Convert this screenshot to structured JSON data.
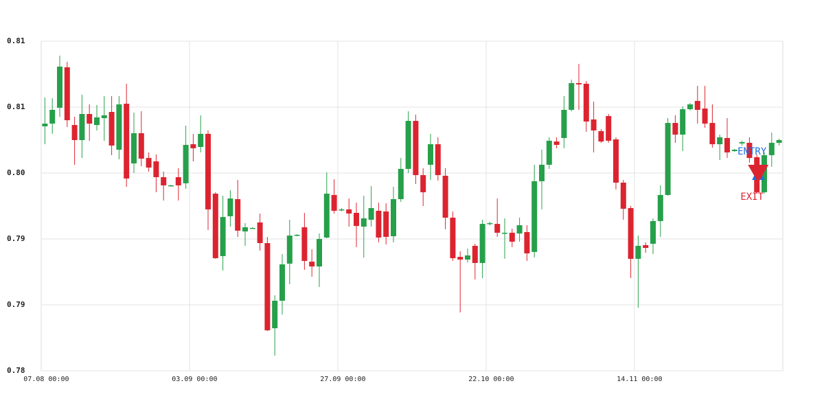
{
  "chart_data": {
    "type": "candlestick",
    "categories": [
      "07.08 00:00",
      null,
      null,
      null,
      null,
      null,
      null,
      null,
      null,
      null,
      null,
      null,
      null,
      null,
      null,
      null,
      null,
      null,
      null,
      null,
      "03.09 00:00",
      null,
      null,
      null,
      null,
      null,
      null,
      null,
      null,
      null,
      null,
      null,
      null,
      null,
      null,
      null,
      null,
      null,
      null,
      null,
      "27.09 00:00",
      null,
      null,
      null,
      null,
      null,
      null,
      null,
      null,
      null,
      null,
      null,
      null,
      null,
      null,
      null,
      null,
      null,
      null,
      null,
      "22.10 00:00",
      null,
      null,
      null,
      null,
      null,
      null,
      null,
      null,
      null,
      null,
      null,
      null,
      null,
      null,
      null,
      null,
      null,
      null,
      null,
      "14.11 00:00",
      null,
      null,
      null,
      null,
      null,
      null,
      null,
      null,
      null,
      null,
      null,
      null,
      null,
      null,
      null,
      null,
      null,
      null,
      null
    ],
    "open": [
      0.80596,
      0.80625,
      0.80793,
      0.81223,
      0.8061,
      0.8045,
      0.80727,
      0.8061,
      0.80683,
      0.80749,
      0.80348,
      0.80836,
      0.80202,
      0.80523,
      0.8026,
      0.80224,
      0.80056,
      0.79969,
      0.80056,
      0.79991,
      0.80406,
      0.80377,
      0.80516,
      0.79881,
      0.79218,
      0.79641,
      0.79823,
      0.7948,
      0.79517,
      0.79575,
      0.79356,
      0.78452,
      0.78744,
      0.79138,
      0.79436,
      0.79524,
      0.79159,
      0.79108,
      0.79415,
      0.79867,
      0.79706,
      0.79714,
      0.79677,
      0.79531,
      0.79604,
      0.79699,
      0.79692,
      0.79429,
      0.79823,
      0.80144,
      0.80654,
      0.80078,
      0.80188,
      0.80406,
      0.80071,
      0.79626,
      0.7921,
      0.79181,
      0.79327,
      0.79145,
      0.7956,
      0.7956,
      0.79458,
      0.79466,
      0.79458,
      0.79473,
      0.79262,
      0.80013,
      0.80188,
      0.80435,
      0.80472,
      0.80771,
      0.81055,
      0.81048,
      0.80669,
      0.80545,
      0.80705,
      0.80457,
      0.79998,
      0.79728,
      0.79189,
      0.79334,
      0.79349,
      0.7959,
      0.79867,
      0.80632,
      0.80508,
      0.80778,
      0.80866,
      0.80785,
      0.80632,
      0.80406,
      0.80472,
      0.80333,
      0.80414,
      0.80421,
      0.80268,
      0.79896,
      0.8029,
      0.80421
    ],
    "high": [
      0.80902,
      0.80895,
      0.81347,
      0.81281,
      0.80698,
      0.80931,
      0.80829,
      0.80822,
      0.80917,
      0.80917,
      0.80917,
      0.81048,
      0.80742,
      0.80756,
      0.80319,
      0.80297,
      0.80115,
      0.79976,
      0.80151,
      0.80603,
      0.80516,
      0.80713,
      0.80552,
      0.79896,
      0.79859,
      0.79918,
      0.80027,
      0.79568,
      0.79524,
      0.7967,
      0.79422,
      0.78802,
      0.7924,
      0.79604,
      0.79451,
      0.79677,
      0.79291,
      0.79458,
      0.80107,
      0.80034,
      0.79728,
      0.7983,
      0.79786,
      0.79859,
      0.79962,
      0.79786,
      0.79779,
      0.79954,
      0.8026,
      0.80756,
      0.8072,
      0.80151,
      0.80516,
      0.80479,
      0.80151,
      0.79692,
      0.79269,
      0.79298,
      0.79349,
      0.79604,
      0.79582,
      0.7983,
      0.79619,
      0.79509,
      0.79626,
      0.79546,
      0.80188,
      0.80348,
      0.80479,
      0.80479,
      0.80917,
      0.81092,
      0.81259,
      0.81077,
      0.80858,
      0.80567,
      0.80727,
      0.80479,
      0.80027,
      0.7975,
      0.79436,
      0.79364,
      0.79619,
      0.79969,
      0.80683,
      0.80713,
      0.80807,
      0.80844,
      0.81026,
      0.81026,
      0.80829,
      0.80508,
      0.80683,
      0.80355,
      0.80443,
      0.80479,
      0.80297,
      0.80319,
      0.8053,
      0.80465
    ],
    "low": [
      0.80406,
      0.80516,
      0.80698,
      0.80589,
      0.80188,
      0.8026,
      0.80443,
      0.80552,
      0.80443,
      0.8029,
      0.80246,
      0.79954,
      0.801,
      0.80173,
      0.80115,
      0.79896,
      0.79808,
      0.79962,
      0.79808,
      0.79932,
      0.80224,
      0.80319,
      0.79495,
      0.79189,
      0.79065,
      0.79531,
      0.79422,
      0.79327,
      0.79509,
      0.79276,
      0.78423,
      0.7816,
      0.78598,
      0.78919,
      0.79429,
      0.79072,
      0.78999,
      0.7889,
      0.79407,
      0.7967,
      0.79692,
      0.79531,
      0.79313,
      0.79203,
      0.79531,
      0.79364,
      0.79342,
      0.79364,
      0.79794,
      0.801,
      0.79983,
      0.7975,
      0.80027,
      0.8002,
      0.79502,
      0.79167,
      0.7862,
      0.79152,
      0.7897,
      0.78984,
      0.79546,
      0.79422,
      0.79189,
      0.79313,
      0.79371,
      0.79167,
      0.79203,
      0.79714,
      0.80144,
      0.80363,
      0.80363,
      0.80756,
      0.80771,
      0.80538,
      0.80319,
      0.80421,
      0.80421,
      0.79925,
      0.79604,
      0.78984,
      0.78671,
      0.79254,
      0.7924,
      0.79422,
      0.79859,
      0.80421,
      0.80333,
      0.80764,
      0.80625,
      0.80581,
      0.8037,
      0.80239,
      0.8026,
      0.80326,
      0.80392,
      0.80209,
      0.79881,
      0.79881,
      0.80166,
      0.80392
    ],
    "close": [
      0.80625,
      0.80771,
      0.8123,
      0.80661,
      0.8045,
      0.80727,
      0.80625,
      0.80691,
      0.80713,
      0.80392,
      0.80829,
      0.80042,
      0.80523,
      0.80253,
      0.80158,
      0.80056,
      0.79969,
      0.79969,
      0.79969,
      0.80399,
      0.80363,
      0.80516,
      0.79714,
      0.79196,
      0.79633,
      0.7983,
      0.79488,
      0.79524,
      0.79517,
      0.79356,
      0.7843,
      0.78744,
      0.7913,
      0.79436,
      0.79444,
      0.79167,
      0.79108,
      0.794,
      0.79881,
      0.79699,
      0.79714,
      0.7967,
      0.79538,
      0.79619,
      0.79728,
      0.79415,
      0.79422,
      0.79823,
      0.80144,
      0.80654,
      0.80078,
      0.79896,
      0.80406,
      0.80078,
      0.79626,
      0.79196,
      0.79181,
      0.79225,
      0.79145,
      0.7956,
      0.79568,
      0.79466,
      0.79466,
      0.79371,
      0.79546,
      0.79247,
      0.80013,
      0.80188,
      0.80443,
      0.80399,
      0.80771,
      0.81055,
      0.81041,
      0.80647,
      0.80552,
      0.80435,
      0.80443,
      0.79998,
      0.79721,
      0.79189,
      0.79327,
      0.79305,
      0.7959,
      0.79867,
      0.80632,
      0.80508,
      0.80778,
      0.80829,
      0.80771,
      0.80625,
      0.80406,
      0.80479,
      0.80319,
      0.80348,
      0.80428,
      0.8026,
      0.79896,
      0.8029,
      0.80421,
      0.8045
    ],
    "up_color": "#26a04a",
    "down_color": "#dc2430",
    "ylim": [
      0.78,
      0.815
    ],
    "yticks": [
      {
        "value": 0.78,
        "label": "0.78"
      },
      {
        "value": 0.787,
        "label": "0.79"
      },
      {
        "value": 0.794,
        "label": "0.79"
      },
      {
        "value": 0.801,
        "label": "0.80"
      },
      {
        "value": 0.808,
        "label": "0.81"
      },
      {
        "value": 0.815,
        "label": "0.81"
      }
    ],
    "grid": true,
    "annotations": [
      {
        "text": "ENTRY",
        "index": 96,
        "price": 0.80093,
        "color": "#1a6fe0",
        "direction": "up"
      },
      {
        "text": "EXIT",
        "index": 96,
        "price": 0.80093,
        "color": "#dc2430",
        "direction": "down"
      }
    ]
  }
}
